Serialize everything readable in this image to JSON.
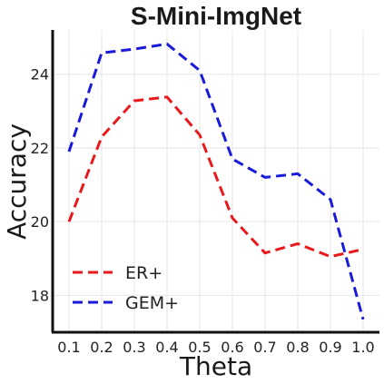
{
  "chart_data": {
    "type": "line",
    "title": "S-Mini-ImgNet",
    "xlabel": "Theta",
    "ylabel": "Accuracy",
    "x": [
      0.1,
      0.2,
      0.3,
      0.4,
      0.5,
      0.6,
      0.7,
      0.8,
      0.9,
      1.0
    ],
    "x_tick_labels": [
      "0.1",
      "0.2",
      "0.3",
      "0.4",
      "0.5",
      "0.6",
      "0.7",
      "0.8",
      "0.9",
      "1.0"
    ],
    "y_ticks": [
      18,
      20,
      22,
      24
    ],
    "y_tick_labels": [
      "18",
      "20",
      "22",
      "24"
    ],
    "xlim": [
      0.05,
      1.05
    ],
    "ylim": [
      17.0,
      25.2
    ],
    "grid": true,
    "legend_position": "lower-left",
    "series": [
      {
        "name": "ER+",
        "color": "#e8191c",
        "line_style": "dashed",
        "values": [
          20.0,
          22.3,
          23.28,
          23.38,
          22.35,
          20.1,
          19.15,
          19.4,
          19.05,
          19.25
        ]
      },
      {
        "name": "GEM+",
        "color": "#1a1adb",
        "line_style": "dashed",
        "values": [
          21.9,
          24.58,
          24.68,
          24.82,
          24.1,
          21.7,
          21.2,
          21.3,
          20.6,
          17.35
        ]
      }
    ]
  }
}
